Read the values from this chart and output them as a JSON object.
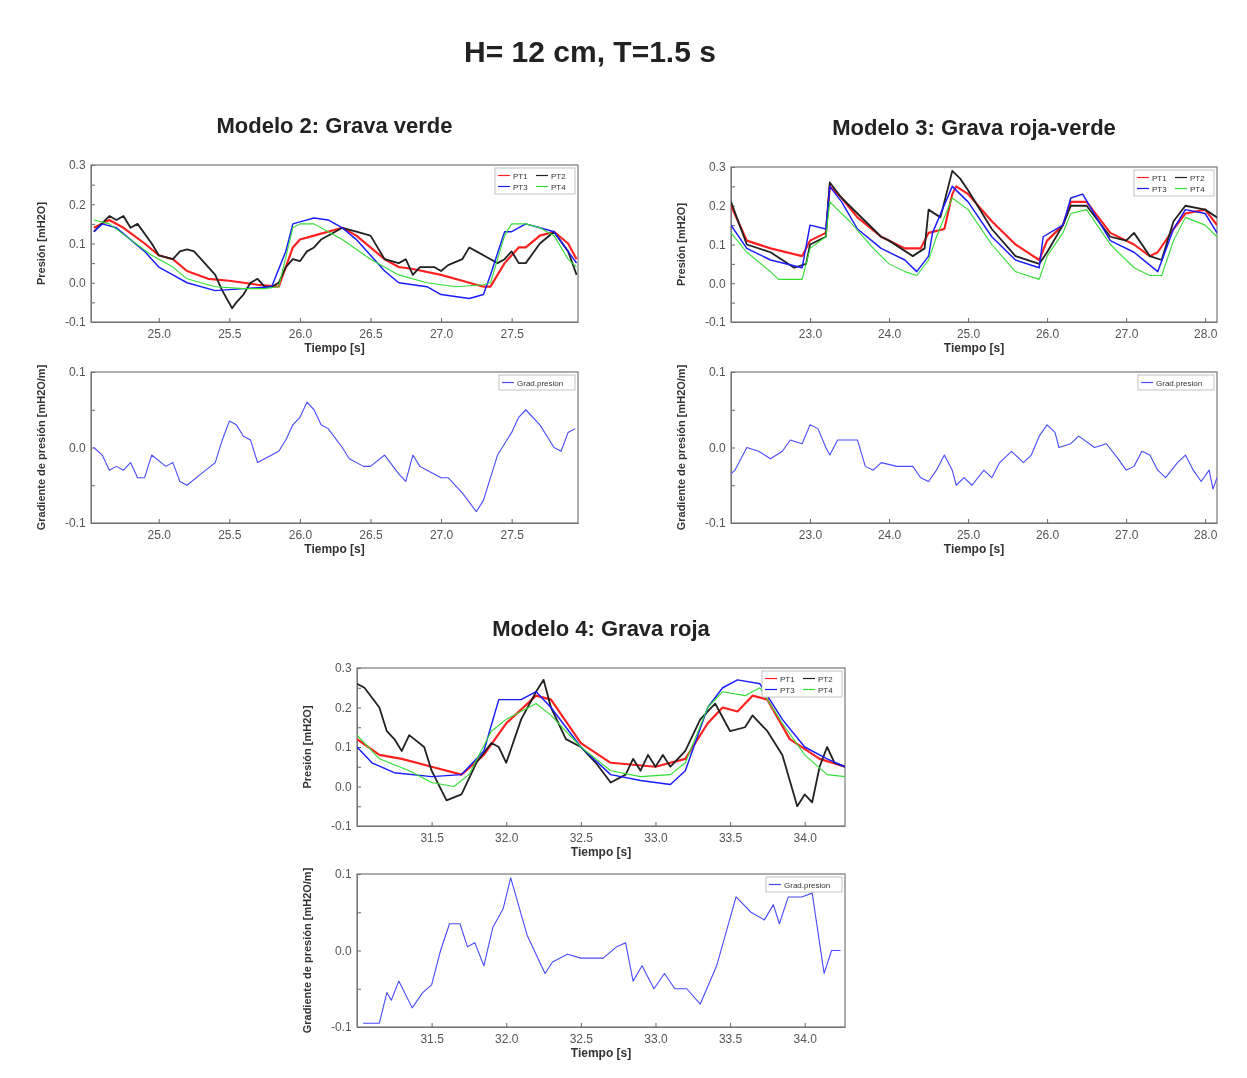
{
  "chart_data": [
    {
      "type": "other",
      "title": "H= 12 cm, T=1.5 s"
    },
    {
      "type": "line",
      "title": "Modelo 2: Grava verde",
      "xlabel": "Tiempo [s]",
      "ylabel": "Presión [mH2O]",
      "xlim": [
        24.52,
        27.97
      ],
      "ylim": [
        -0.1,
        0.3
      ],
      "xticks": [
        {
          "value": 25,
          "label": "25.0"
        },
        25.5,
        {
          "value": 26,
          "label": "26.0"
        },
        26.5,
        {
          "value": 27,
          "label": "27.0"
        },
        27.5
      ],
      "yticks": [
        -0.1,
        {
          "value": -0.05,
          "label": null
        },
        {
          "value": 0,
          "label": "0.0"
        },
        {
          "value": 0.05,
          "label": null
        },
        0.1,
        {
          "value": 0.15,
          "label": null
        },
        0.2,
        {
          "value": 0.25,
          "label": null
        },
        0.3
      ],
      "legend": "top right",
      "series": [
        {
          "name": "PT1",
          "color": "#ff2020",
          "x": [
            24.54,
            24.65,
            24.75,
            24.9,
            25.0,
            25.1,
            25.2,
            25.35,
            25.5,
            25.7,
            25.85,
            25.9,
            25.95,
            26.0,
            26.1,
            26.3,
            26.4,
            26.6,
            26.7,
            26.8,
            27.0,
            27.15,
            27.3,
            27.35,
            27.45,
            27.55,
            27.6,
            27.7,
            27.8,
            27.9,
            27.96
          ],
          "values": [
            0.14,
            0.16,
            0.14,
            0.1,
            0.07,
            0.06,
            0.03,
            0.01,
            0.005,
            -0.005,
            -0.01,
            0.04,
            0.09,
            0.11,
            0.12,
            0.14,
            0.12,
            0.06,
            0.04,
            0.035,
            0.02,
            0.005,
            -0.01,
            -0.01,
            0.05,
            0.09,
            0.09,
            0.12,
            0.13,
            0.1,
            0.06
          ]
        },
        {
          "name": "PT2",
          "color": "#222222",
          "x": [
            24.54,
            24.65,
            24.7,
            24.75,
            24.8,
            24.85,
            24.95,
            25.0,
            25.1,
            25.15,
            25.2,
            25.25,
            25.3,
            25.4,
            25.45,
            25.52,
            25.55,
            25.6,
            25.65,
            25.7,
            25.75,
            25.8,
            25.85,
            25.9,
            25.95,
            26.0,
            26.05,
            26.1,
            26.15,
            26.25,
            26.3,
            26.4,
            26.5,
            26.6,
            26.7,
            26.75,
            26.8,
            26.85,
            26.95,
            27.0,
            27.05,
            27.15,
            27.2,
            27.25,
            27.35,
            27.4,
            27.45,
            27.5,
            27.55,
            27.6,
            27.7,
            27.8,
            27.9,
            27.96
          ],
          "values": [
            0.13,
            0.17,
            0.16,
            0.17,
            0.14,
            0.15,
            0.1,
            0.07,
            0.06,
            0.08,
            0.085,
            0.08,
            0.06,
            0.02,
            -0.02,
            -0.065,
            -0.05,
            -0.03,
            0.0,
            0.01,
            -0.01,
            -0.01,
            0.0,
            0.04,
            0.06,
            0.055,
            0.08,
            0.09,
            0.11,
            0.13,
            0.14,
            0.13,
            0.12,
            0.06,
            0.05,
            0.06,
            0.02,
            0.04,
            0.04,
            0.03,
            0.045,
            0.06,
            0.09,
            0.08,
            0.06,
            0.05,
            0.06,
            0.08,
            0.05,
            0.05,
            0.1,
            0.13,
            0.08,
            0.02
          ]
        },
        {
          "name": "PT3",
          "color": "#1a1aff",
          "x": [
            24.54,
            24.6,
            24.7,
            24.8,
            24.9,
            25.0,
            25.1,
            25.2,
            25.4,
            25.6,
            25.8,
            25.9,
            25.95,
            26.0,
            26.1,
            26.2,
            26.3,
            26.4,
            26.5,
            26.6,
            26.7,
            26.9,
            27.0,
            27.2,
            27.3,
            27.35,
            27.45,
            27.5,
            27.6,
            27.7,
            27.8,
            27.9,
            27.96
          ],
          "values": [
            0.13,
            0.15,
            0.14,
            0.11,
            0.08,
            0.04,
            0.02,
            0.0,
            -0.02,
            -0.015,
            -0.01,
            0.08,
            0.15,
            0.155,
            0.165,
            0.16,
            0.14,
            0.11,
            0.07,
            0.03,
            0.0,
            -0.01,
            -0.03,
            -0.04,
            -0.03,
            0.02,
            0.13,
            0.13,
            0.15,
            0.14,
            0.13,
            0.08,
            0.05
          ]
        },
        {
          "name": "PT4",
          "color": "#33dd33",
          "x": [
            24.54,
            24.65,
            24.8,
            24.95,
            25.1,
            25.2,
            25.4,
            25.6,
            25.75,
            25.85,
            25.95,
            26.0,
            26.1,
            26.2,
            26.3,
            26.5,
            26.7,
            26.9,
            27.1,
            27.3,
            27.35,
            27.45,
            27.5,
            27.6,
            27.7,
            27.8,
            27.9,
            27.96
          ],
          "values": [
            0.16,
            0.15,
            0.11,
            0.07,
            0.04,
            0.01,
            -0.01,
            -0.015,
            -0.015,
            -0.01,
            0.14,
            0.15,
            0.15,
            0.13,
            0.11,
            0.06,
            0.02,
            0.0,
            -0.01,
            -0.005,
            0.0,
            0.12,
            0.15,
            0.15,
            0.14,
            0.12,
            0.06,
            0.04
          ]
        }
      ]
    },
    {
      "type": "line",
      "xlabel": "Tiempo [s]",
      "ylabel": "Gradiente de presión [mH2O/m]",
      "xlim": [
        24.52,
        27.97
      ],
      "ylim": [
        -0.1,
        0.1
      ],
      "xticks": [
        {
          "value": 25,
          "label": "25.0"
        },
        25.5,
        {
          "value": 26,
          "label": "26.0"
        },
        26.5,
        {
          "value": 27,
          "label": "27.0"
        },
        27.5
      ],
      "yticks": [
        -0.1,
        {
          "value": -0.05,
          "label": null
        },
        {
          "value": 0,
          "label": "0.0"
        },
        {
          "value": 0.05,
          "label": null
        },
        0.1
      ],
      "legend": "top right",
      "series": [
        {
          "name": "Grad.presion",
          "color": "#4a4aff",
          "x": [
            24.54,
            24.6,
            24.65,
            24.7,
            24.75,
            24.8,
            24.85,
            24.9,
            24.95,
            25.05,
            25.1,
            25.15,
            25.2,
            25.3,
            25.4,
            25.45,
            25.5,
            25.55,
            25.6,
            25.65,
            25.7,
            25.75,
            25.85,
            25.9,
            25.95,
            26.0,
            26.05,
            26.1,
            26.15,
            26.2,
            26.3,
            26.35,
            26.45,
            26.5,
            26.6,
            26.7,
            26.75,
            26.8,
            26.85,
            26.9,
            27.0,
            27.05,
            27.15,
            27.25,
            27.3,
            27.35,
            27.4,
            27.5,
            27.55,
            27.6,
            27.7,
            27.8,
            27.85,
            27.9,
            27.95
          ],
          "values": [
            0.0,
            -0.01,
            -0.03,
            -0.025,
            -0.03,
            -0.02,
            -0.04,
            -0.04,
            -0.01,
            -0.025,
            -0.02,
            -0.045,
            -0.05,
            -0.035,
            -0.02,
            0.01,
            0.035,
            0.03,
            0.015,
            0.01,
            -0.02,
            -0.015,
            -0.005,
            0.01,
            0.03,
            0.04,
            0.06,
            0.05,
            0.03,
            0.025,
            0.0,
            -0.015,
            -0.025,
            -0.025,
            -0.01,
            -0.035,
            -0.045,
            -0.01,
            -0.025,
            -0.03,
            -0.04,
            -0.04,
            -0.06,
            -0.085,
            -0.07,
            -0.04,
            -0.01,
            0.02,
            0.04,
            0.05,
            0.03,
            0.0,
            -0.005,
            0.02,
            0.025
          ]
        }
      ]
    },
    {
      "type": "line",
      "title": "Modelo 3: Grava roja-verde",
      "xlabel": "Tiempo [s]",
      "ylabel": "Presión [mH2O]",
      "xlim": [
        22.0,
        28.15
      ],
      "ylim": [
        -0.1,
        0.3
      ],
      "xticks": [
        {
          "value": 23,
          "label": "23.0"
        },
        {
          "value": 24,
          "label": "24.0"
        },
        {
          "value": 25,
          "label": "25.0"
        },
        {
          "value": 26,
          "label": "26.0"
        },
        {
          "value": 27,
          "label": "27.0"
        },
        {
          "value": 28,
          "label": "28.0"
        }
      ],
      "yticks": [
        -0.1,
        {
          "value": -0.05,
          "label": null
        },
        {
          "value": 0,
          "label": "0.0"
        },
        {
          "value": 0.05,
          "label": null
        },
        0.1,
        {
          "value": 0.15,
          "label": null
        },
        0.2,
        {
          "value": 0.25,
          "label": null
        },
        0.3
      ],
      "legend": "top right",
      "series": [
        {
          "name": "PT1",
          "color": "#ff2020",
          "x": [
            22.0,
            22.2,
            22.5,
            22.9,
            23.0,
            23.2,
            23.25,
            23.4,
            23.6,
            23.9,
            24.2,
            24.4,
            24.5,
            24.7,
            24.8,
            24.85,
            25.0,
            25.3,
            25.6,
            25.9,
            26.0,
            26.2,
            26.3,
            26.5,
            26.8,
            27.1,
            27.3,
            27.4,
            27.6,
            27.75,
            28.0,
            28.15
          ],
          "values": [
            0.2,
            0.11,
            0.09,
            0.07,
            0.11,
            0.13,
            0.25,
            0.22,
            0.17,
            0.12,
            0.09,
            0.09,
            0.13,
            0.14,
            0.23,
            0.25,
            0.23,
            0.16,
            0.1,
            0.06,
            0.11,
            0.15,
            0.21,
            0.21,
            0.13,
            0.1,
            0.07,
            0.08,
            0.14,
            0.18,
            0.19,
            0.15
          ]
        },
        {
          "name": "PT2",
          "color": "#222222",
          "x": [
            22.0,
            22.2,
            22.5,
            22.8,
            22.95,
            23.0,
            23.2,
            23.25,
            23.4,
            23.6,
            23.9,
            24.0,
            24.3,
            24.45,
            24.5,
            24.65,
            24.8,
            24.9,
            25.0,
            25.3,
            25.6,
            25.9,
            26.0,
            26.2,
            26.3,
            26.5,
            26.8,
            27.0,
            27.1,
            27.3,
            27.45,
            27.6,
            27.75,
            28.0,
            28.15
          ],
          "values": [
            0.21,
            0.1,
            0.08,
            0.04,
            0.05,
            0.1,
            0.12,
            0.26,
            0.22,
            0.18,
            0.12,
            0.11,
            0.07,
            0.09,
            0.19,
            0.17,
            0.29,
            0.27,
            0.24,
            0.14,
            0.07,
            0.05,
            0.08,
            0.15,
            0.2,
            0.2,
            0.12,
            0.11,
            0.13,
            0.07,
            0.06,
            0.16,
            0.2,
            0.19,
            0.17
          ]
        },
        {
          "name": "PT3",
          "color": "#1a1aff",
          "x": [
            22.0,
            22.2,
            22.5,
            22.9,
            23.0,
            23.2,
            23.25,
            23.4,
            23.6,
            23.9,
            24.2,
            24.35,
            24.5,
            24.55,
            24.8,
            25.0,
            25.3,
            25.6,
            25.9,
            25.95,
            26.2,
            26.3,
            26.45,
            26.8,
            27.1,
            27.4,
            27.6,
            27.75,
            28.0,
            28.15
          ],
          "values": [
            0.15,
            0.09,
            0.06,
            0.04,
            0.15,
            0.14,
            0.25,
            0.21,
            0.14,
            0.09,
            0.06,
            0.03,
            0.07,
            0.13,
            0.25,
            0.21,
            0.12,
            0.06,
            0.04,
            0.12,
            0.15,
            0.22,
            0.23,
            0.11,
            0.08,
            0.03,
            0.14,
            0.19,
            0.18,
            0.13
          ]
        },
        {
          "name": "PT4",
          "color": "#33dd33",
          "x": [
            22.0,
            22.2,
            22.5,
            22.6,
            22.9,
            23.0,
            23.2,
            23.25,
            23.5,
            23.8,
            24.0,
            24.2,
            24.35,
            24.5,
            24.6,
            24.8,
            25.0,
            25.3,
            25.6,
            25.9,
            26.0,
            26.2,
            26.3,
            26.5,
            26.8,
            27.1,
            27.3,
            27.45,
            27.6,
            27.75,
            28.0,
            28.15
          ],
          "values": [
            0.13,
            0.08,
            0.03,
            0.01,
            0.01,
            0.09,
            0.12,
            0.21,
            0.16,
            0.09,
            0.05,
            0.03,
            0.02,
            0.06,
            0.12,
            0.22,
            0.19,
            0.1,
            0.03,
            0.01,
            0.07,
            0.13,
            0.18,
            0.19,
            0.1,
            0.04,
            0.02,
            0.02,
            0.11,
            0.17,
            0.15,
            0.12
          ]
        }
      ]
    },
    {
      "type": "line",
      "xlabel": "Tiempo [s]",
      "ylabel": "Gradiente de presión [mH2O/m]",
      "xlim": [
        22.0,
        28.15
      ],
      "ylim": [
        -0.1,
        0.1
      ],
      "xticks": [
        {
          "value": 23,
          "label": "23.0"
        },
        {
          "value": 24,
          "label": "24.0"
        },
        {
          "value": 25,
          "label": "25.0"
        },
        {
          "value": 26,
          "label": "26.0"
        },
        {
          "value": 27,
          "label": "27.0"
        },
        {
          "value": 28,
          "label": "28.0"
        }
      ],
      "yticks": [
        -0.1,
        {
          "value": -0.05,
          "label": null
        },
        {
          "value": 0,
          "label": "0.0"
        },
        {
          "value": 0.05,
          "label": null
        },
        0.1
      ],
      "legend": "top right",
      "series": [
        {
          "name": "Grad.presion",
          "color": "#4a4aff",
          "x": [
            22.0,
            22.05,
            22.2,
            22.35,
            22.5,
            22.65,
            22.75,
            22.9,
            23.0,
            23.1,
            23.2,
            23.25,
            23.35,
            23.5,
            23.6,
            23.7,
            23.8,
            23.9,
            24.1,
            24.3,
            24.4,
            24.5,
            24.6,
            24.7,
            24.8,
            24.85,
            24.95,
            25.05,
            25.2,
            25.3,
            25.4,
            25.55,
            25.7,
            25.8,
            25.9,
            26.0,
            26.1,
            26.15,
            26.3,
            26.4,
            26.6,
            26.75,
            26.9,
            27.0,
            27.1,
            27.2,
            27.3,
            27.4,
            27.5,
            27.65,
            27.75,
            27.85,
            27.95,
            28.05,
            28.1,
            28.15
          ],
          "values": [
            -0.035,
            -0.03,
            0.0,
            -0.005,
            -0.015,
            -0.005,
            0.01,
            0.005,
            0.03,
            0.025,
            0.0,
            -0.01,
            0.01,
            0.01,
            0.01,
            -0.025,
            -0.03,
            -0.02,
            -0.025,
            -0.025,
            -0.04,
            -0.045,
            -0.03,
            -0.01,
            -0.03,
            -0.05,
            -0.04,
            -0.05,
            -0.03,
            -0.04,
            -0.02,
            -0.005,
            -0.02,
            -0.01,
            0.015,
            0.03,
            0.02,
            0.0,
            0.005,
            0.015,
            0.0,
            0.005,
            -0.015,
            -0.03,
            -0.025,
            -0.005,
            -0.01,
            -0.03,
            -0.04,
            -0.02,
            -0.01,
            -0.03,
            -0.045,
            -0.03,
            -0.055,
            -0.04
          ]
        }
      ]
    },
    {
      "type": "line",
      "title": "Modelo 4: Grava roja",
      "xlabel": "Tiempo [s]",
      "ylabel": "Presión [mH2O]",
      "xlim": [
        31.0,
        34.27
      ],
      "ylim": [
        -0.1,
        0.3
      ],
      "xticks": [
        31.5,
        {
          "value": 32,
          "label": "32.0"
        },
        32.5,
        {
          "value": 33,
          "label": "33.0"
        },
        33.5,
        {
          "value": 34,
          "label": "34.0"
        }
      ],
      "yticks": [
        -0.1,
        {
          "value": -0.05,
          "label": null
        },
        {
          "value": 0,
          "label": "0.0"
        },
        {
          "value": 0.05,
          "label": null
        },
        0.1,
        {
          "value": 0.15,
          "label": null
        },
        0.2,
        {
          "value": 0.25,
          "label": null
        },
        0.3
      ],
      "legend": "top right",
      "series": [
        {
          "name": "PT1",
          "color": "#ff2020",
          "x": [
            31.0,
            31.15,
            31.3,
            31.5,
            31.7,
            31.85,
            32.0,
            32.2,
            32.3,
            32.5,
            32.7,
            33.0,
            33.2,
            33.35,
            33.45,
            33.55,
            33.65,
            33.75,
            33.9,
            34.1,
            34.27
          ],
          "values": [
            0.12,
            0.08,
            0.07,
            0.05,
            0.03,
            0.08,
            0.16,
            0.23,
            0.22,
            0.11,
            0.06,
            0.05,
            0.07,
            0.16,
            0.2,
            0.19,
            0.23,
            0.22,
            0.12,
            0.07,
            0.05
          ]
        },
        {
          "name": "PT2",
          "color": "#222222",
          "x": [
            31.0,
            31.05,
            31.15,
            31.2,
            31.25,
            31.3,
            31.35,
            31.45,
            31.5,
            31.6,
            31.7,
            31.8,
            31.9,
            31.95,
            32.0,
            32.1,
            32.2,
            32.25,
            32.3,
            32.4,
            32.5,
            32.6,
            32.7,
            32.8,
            32.85,
            32.9,
            32.95,
            33.0,
            33.05,
            33.1,
            33.2,
            33.3,
            33.4,
            33.5,
            33.6,
            33.65,
            33.75,
            33.85,
            33.95,
            34.0,
            34.05,
            34.1,
            34.15,
            34.2,
            34.27
          ],
          "values": [
            0.26,
            0.25,
            0.2,
            0.14,
            0.12,
            0.09,
            0.13,
            0.1,
            0.04,
            -0.035,
            -0.02,
            0.06,
            0.11,
            0.1,
            0.06,
            0.17,
            0.24,
            0.27,
            0.2,
            0.12,
            0.1,
            0.06,
            0.01,
            0.03,
            0.07,
            0.04,
            0.08,
            0.05,
            0.08,
            0.05,
            0.09,
            0.17,
            0.21,
            0.14,
            0.15,
            0.18,
            0.14,
            0.08,
            -0.05,
            -0.02,
            -0.04,
            0.05,
            0.1,
            0.06,
            0.05
          ]
        },
        {
          "name": "PT3",
          "color": "#1a1aff",
          "x": [
            31.0,
            31.1,
            31.25,
            31.5,
            31.7,
            31.85,
            31.95,
            32.1,
            32.2,
            32.3,
            32.5,
            32.7,
            32.9,
            33.1,
            33.2,
            33.35,
            33.45,
            33.55,
            33.7,
            33.85,
            34.0,
            34.15,
            34.27
          ],
          "values": [
            0.1,
            0.06,
            0.035,
            0.025,
            0.03,
            0.09,
            0.22,
            0.22,
            0.24,
            0.2,
            0.1,
            0.03,
            0.015,
            0.005,
            0.04,
            0.2,
            0.25,
            0.27,
            0.26,
            0.17,
            0.1,
            0.07,
            0.05
          ]
        },
        {
          "name": "PT4",
          "color": "#33dd33",
          "x": [
            31.0,
            31.15,
            31.35,
            31.5,
            31.65,
            31.75,
            31.9,
            32.0,
            32.2,
            32.3,
            32.5,
            32.7,
            32.9,
            33.1,
            33.2,
            33.35,
            33.45,
            33.6,
            33.7,
            33.85,
            34.0,
            34.15,
            34.27
          ],
          "values": [
            0.13,
            0.07,
            0.04,
            0.01,
            0.0,
            0.03,
            0.14,
            0.17,
            0.21,
            0.18,
            0.1,
            0.04,
            0.025,
            0.03,
            0.06,
            0.2,
            0.24,
            0.23,
            0.25,
            0.16,
            0.08,
            0.03,
            0.025
          ]
        }
      ]
    },
    {
      "type": "line",
      "xlabel": "Tiempo [s]",
      "ylabel": "Gradiente de presión [mH2O/m]",
      "xlim": [
        31.0,
        34.27
      ],
      "ylim": [
        -0.1,
        0.1
      ],
      "xticks": [
        31.5,
        {
          "value": 32,
          "label": "32.0"
        },
        32.5,
        {
          "value": 33,
          "label": "33.0"
        },
        33.5,
        {
          "value": 34,
          "label": "34.0"
        }
      ],
      "yticks": [
        -0.1,
        {
          "value": -0.05,
          "label": null
        },
        {
          "value": 0,
          "label": "0.0"
        },
        {
          "value": 0.05,
          "label": null
        },
        0.1
      ],
      "legend": "top right",
      "series": [
        {
          "name": "Grad.presion",
          "color": "#4a4aff",
          "x": [
            31.04,
            31.15,
            31.2,
            31.23,
            31.28,
            31.37,
            31.44,
            31.5,
            31.56,
            31.62,
            31.69,
            31.74,
            31.79,
            31.85,
            31.91,
            31.98,
            32.03,
            32.14,
            32.26,
            32.31,
            32.41,
            32.5,
            32.65,
            32.74,
            32.8,
            32.85,
            32.91,
            32.99,
            33.06,
            33.13,
            33.21,
            33.3,
            33.41,
            33.54,
            33.64,
            33.73,
            33.79,
            33.83,
            33.89,
            33.98,
            34.05,
            34.13,
            34.18,
            34.24
          ],
          "values": [
            -0.095,
            -0.095,
            -0.055,
            -0.065,
            -0.04,
            -0.075,
            -0.055,
            -0.045,
            0.0,
            0.035,
            0.035,
            0.005,
            0.01,
            -0.02,
            0.03,
            0.055,
            0.095,
            0.02,
            -0.03,
            -0.015,
            -0.005,
            -0.01,
            -0.01,
            0.005,
            0.01,
            -0.04,
            -0.02,
            -0.05,
            -0.03,
            -0.05,
            -0.05,
            -0.07,
            -0.02,
            0.07,
            0.05,
            0.04,
            0.06,
            0.035,
            0.07,
            0.07,
            0.075,
            -0.03,
            0.0,
            0.0
          ]
        }
      ]
    }
  ]
}
